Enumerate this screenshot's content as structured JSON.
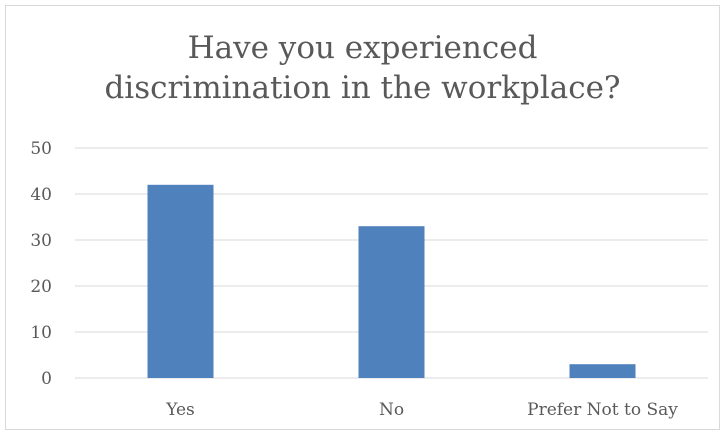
{
  "chart_data": {
    "type": "bar",
    "title": "Have you experienced\ndiscrimination in the workplace?",
    "categories": [
      "Yes",
      "No",
      "Prefer Not to Say"
    ],
    "values": [
      42,
      33,
      3
    ],
    "ylim": [
      0,
      50
    ],
    "yticks": [
      0,
      10,
      20,
      30,
      40,
      50
    ],
    "grid": true,
    "legend": "none",
    "colors": {
      "bar": "#4f81bd",
      "grid": "#d9d9d9",
      "text": "#595959"
    }
  }
}
